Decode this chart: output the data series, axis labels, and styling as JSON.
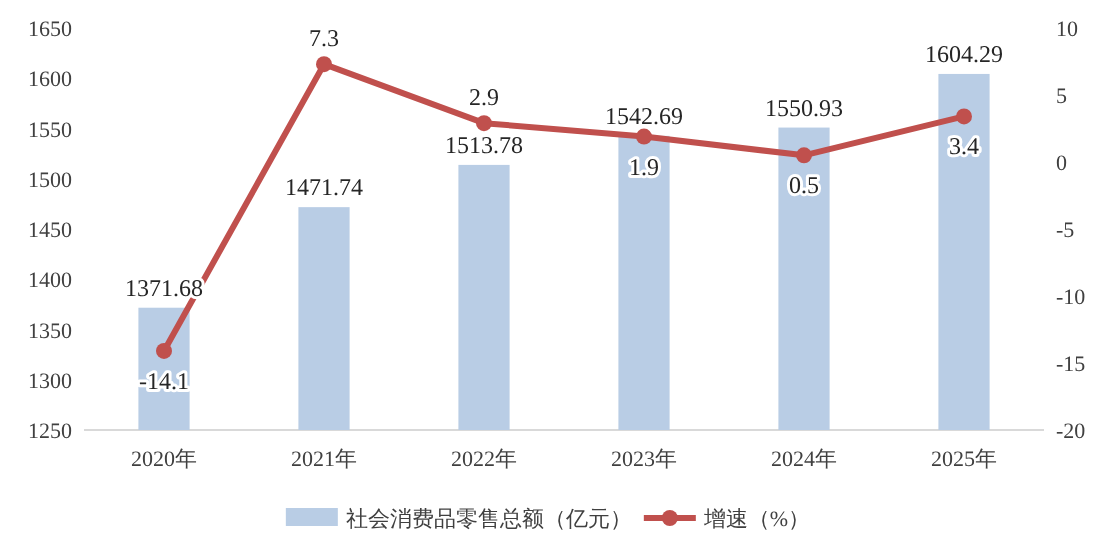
{
  "chart_data": {
    "type": "bar",
    "categories": [
      "2020年",
      "2021年",
      "2022年",
      "2023年",
      "2024年",
      "2025年"
    ],
    "series": [
      {
        "name": "社会消费品零售总额（亿元）",
        "color": "#b9cde5",
        "values": [
          1371.68,
          1471.74,
          1513.78,
          1542.69,
          1550.93,
          1604.29
        ]
      },
      {
        "name": "增速（%）",
        "type": "line",
        "axis": "y2",
        "color": "#c0504d",
        "values": [
          -14.1,
          7.3,
          2.9,
          1.9,
          0.5,
          3.4
        ]
      }
    ],
    "ylim": [
      1250,
      1650
    ],
    "yticks": [
      1250,
      1300,
      1350,
      1400,
      1450,
      1500,
      1550,
      1600,
      1650
    ],
    "y2lim": [
      -20,
      10
    ],
    "y2ticks": [
      -20,
      -15,
      -10,
      -5,
      0,
      5,
      10
    ],
    "data_labels": true,
    "legend": "bottom",
    "marker": "circle",
    "line_style": "solid"
  }
}
